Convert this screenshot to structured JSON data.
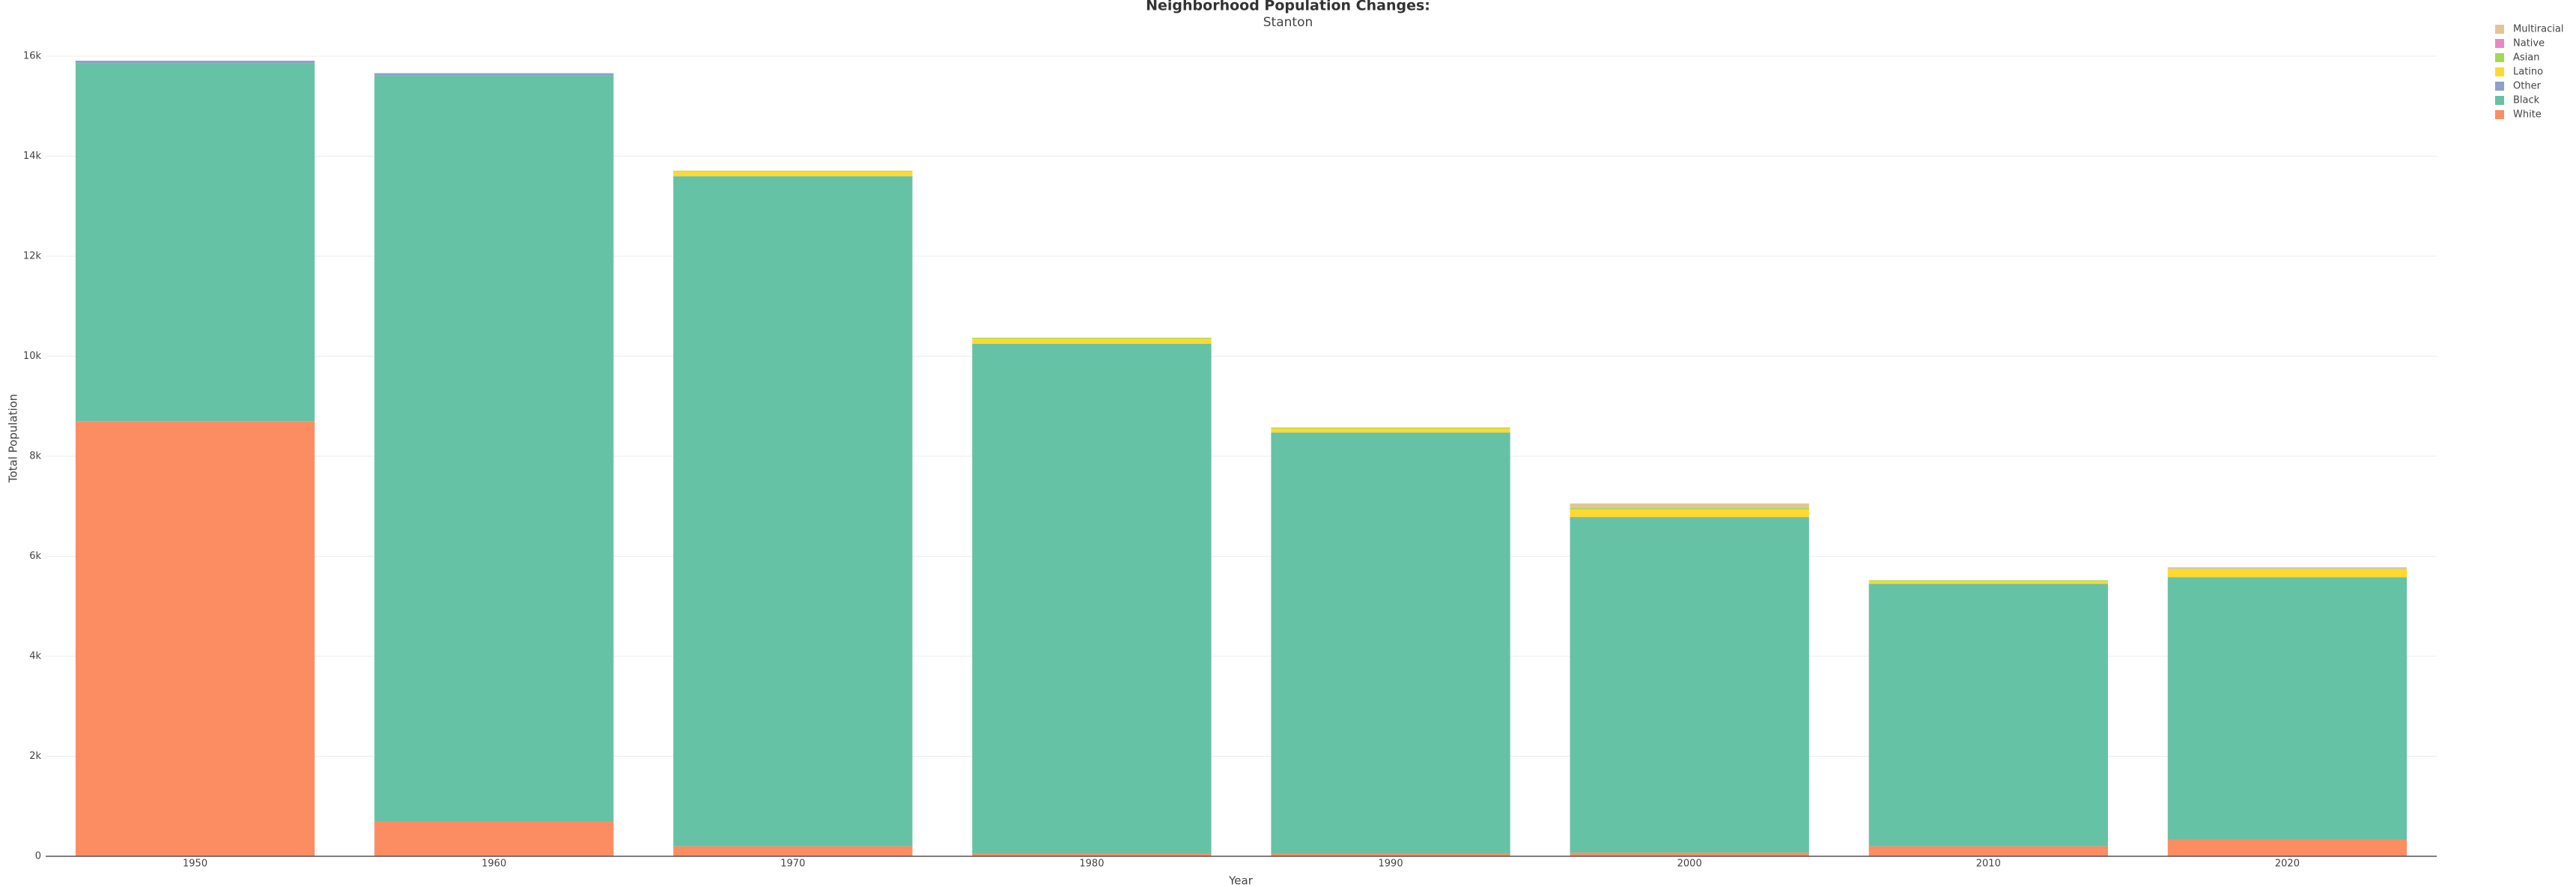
{
  "chart_data": {
    "type": "stacked_bar",
    "title": "Neighborhood Population Changes:",
    "subtitle": "Stanton",
    "x_label": "Year",
    "y_label": "Total Population",
    "categories": [
      "1950",
      "1960",
      "1970",
      "1980",
      "1990",
      "2000",
      "2010",
      "2020"
    ],
    "series": [
      {
        "name": "White",
        "color": "#fc8d62",
        "values": [
          8700,
          690,
          200,
          60,
          60,
          70,
          200,
          330
        ]
      },
      {
        "name": "Black",
        "color": "#66c2a5",
        "values": [
          7160,
          14930,
          13400,
          10190,
          8415,
          6695,
          5250,
          5250
        ]
      },
      {
        "name": "Other",
        "color": "#8da0cb",
        "values": [
          50,
          40,
          0,
          0,
          0,
          20,
          0,
          0
        ]
      },
      {
        "name": "Latino",
        "color": "#ffd92f",
        "values": [
          0,
          0,
          100,
          100,
          80,
          150,
          50,
          160
        ]
      },
      {
        "name": "Asian",
        "color": "#a6d854",
        "values": [
          0,
          0,
          10,
          20,
          20,
          30,
          20,
          10
        ]
      },
      {
        "name": "Native",
        "color": "#e78ac3",
        "values": [
          0,
          0,
          0,
          0,
          0,
          0,
          0,
          0
        ]
      },
      {
        "name": "Multiracial",
        "color": "#e5c494",
        "values": [
          0,
          0,
          0,
          0,
          0,
          90,
          0,
          30
        ]
      }
    ],
    "ylim": [
      0,
      16000
    ],
    "yticks": [
      0,
      {
        "value": 2000,
        "label": "2k"
      },
      {
        "value": 4000,
        "label": "4k"
      },
      {
        "value": 6000,
        "label": "6k"
      },
      {
        "value": 8000,
        "label": "8k"
      },
      {
        "value": 10000,
        "label": "10k"
      },
      {
        "value": 12000,
        "label": "12k"
      },
      {
        "value": 14000,
        "label": "14k"
      },
      {
        "value": 16000,
        "label": "16k"
      }
    ],
    "grid": true,
    "legend": "top-right"
  }
}
